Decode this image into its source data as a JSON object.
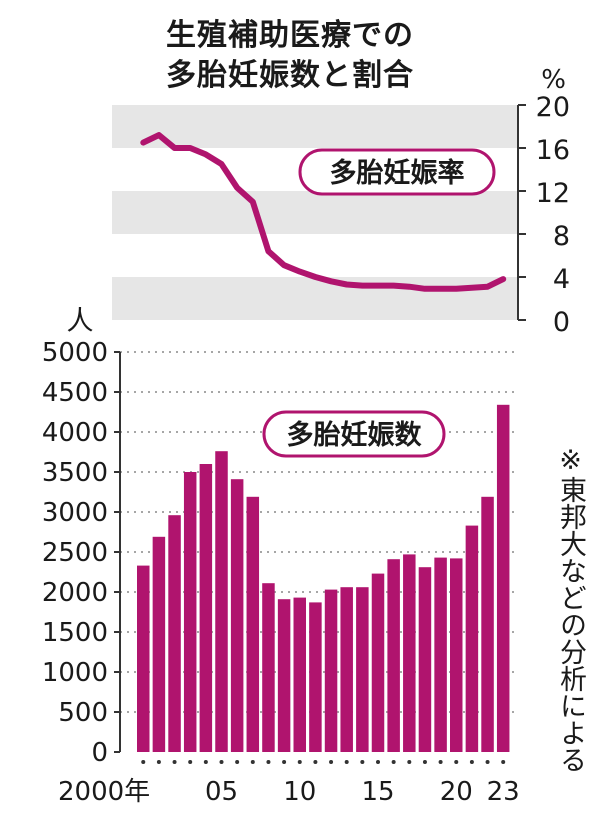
{
  "title_line1": "生殖補助医療での",
  "title_line2": "多胎妊娠数と割合",
  "source_note": "※東邦大などの分析による",
  "colors": {
    "accent": "#b0146e",
    "band": "#e6e6e6",
    "axis": "#333333",
    "text": "#1a1a1a"
  },
  "chart_data": [
    {
      "type": "line",
      "label": "多胎妊娠率",
      "yunit": "%",
      "ylim": [
        0,
        20
      ],
      "yticks": [
        "0",
        "4",
        "8",
        "12",
        "16",
        "20"
      ],
      "x": [
        2000,
        2001,
        2002,
        2003,
        2004,
        2005,
        2006,
        2007,
        2008,
        2009,
        2010,
        2011,
        2012,
        2013,
        2014,
        2015,
        2016,
        2017,
        2018,
        2019,
        2020,
        2021,
        2022,
        2023
      ],
      "values": [
        16.5,
        17.2,
        16.0,
        16.0,
        15.4,
        14.5,
        12.3,
        11.0,
        6.4,
        5.1,
        4.5,
        4.0,
        3.6,
        3.3,
        3.2,
        3.2,
        3.2,
        3.1,
        2.9,
        2.9,
        2.9,
        3.0,
        3.1,
        3.8
      ],
      "grid": "alternating horizontal bands"
    },
    {
      "type": "bar",
      "label": "多胎妊娠数",
      "yunit": "人",
      "ylim": [
        0,
        5000
      ],
      "yticks": [
        "0",
        "500",
        "1000",
        "1500",
        "2000",
        "2500",
        "3000",
        "3500",
        "4000",
        "4500",
        "5000"
      ],
      "categories": [
        2000,
        2001,
        2002,
        2003,
        2004,
        2005,
        2006,
        2007,
        2008,
        2009,
        2010,
        2011,
        2012,
        2013,
        2014,
        2015,
        2016,
        2017,
        2018,
        2019,
        2020,
        2021,
        2022,
        2023
      ],
      "values": [
        2330,
        2690,
        2960,
        3500,
        3600,
        3760,
        3410,
        3190,
        2110,
        1910,
        1930,
        1870,
        2030,
        2060,
        2060,
        2230,
        2410,
        2470,
        2310,
        2430,
        2420,
        2830,
        3190,
        4340
      ],
      "xticks": [
        {
          "year": 2000,
          "label": "2000年"
        },
        {
          "year": 2005,
          "label": "05"
        },
        {
          "year": 2010,
          "label": "10"
        },
        {
          "year": 2015,
          "label": "15"
        },
        {
          "year": 2020,
          "label": "20"
        },
        {
          "year": 2023,
          "label": "23"
        }
      ],
      "grid": "dotted horizontal lines"
    }
  ]
}
